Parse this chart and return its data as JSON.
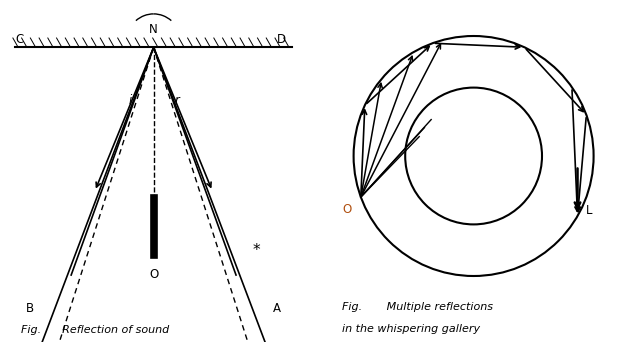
{
  "bg_color": "#ffffff",
  "fig1": {
    "caption": "Fig.      Reflection of sound"
  },
  "fig2": {
    "caption_line1": "Fig.       Multiple reflections",
    "caption_line2": "in the whispering gallery"
  }
}
